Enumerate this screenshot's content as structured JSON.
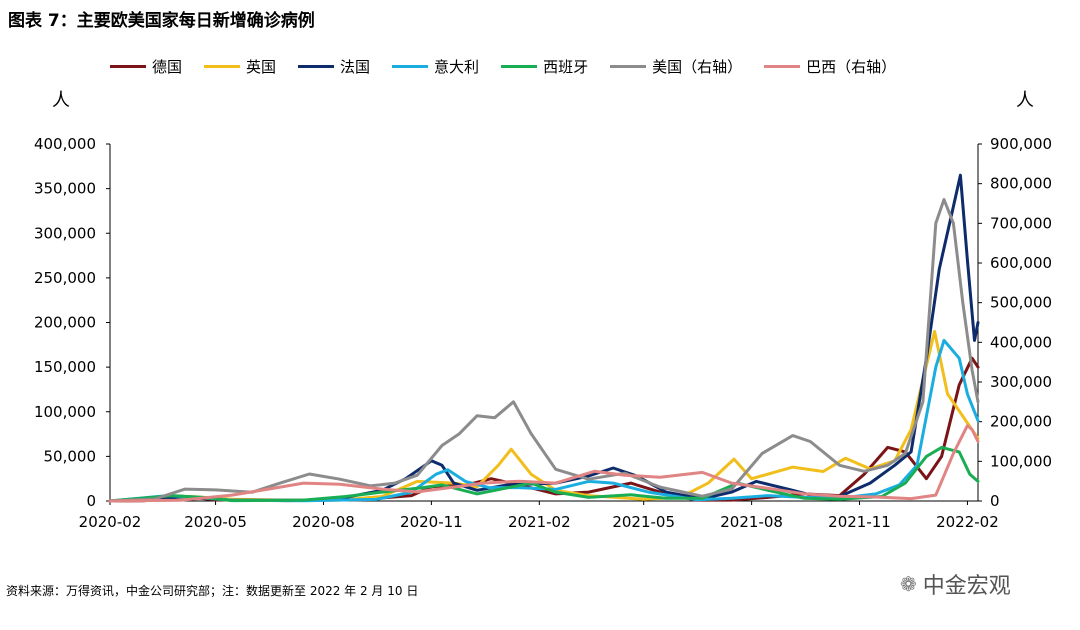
{
  "title": "图表 7：主要欧美国家每日新增确诊病例",
  "unit_left": "人",
  "unit_right": "人",
  "source": "资料来源：万得资讯，中金公司研究部；注：数据更新至 2022 年 2 月 10 日",
  "watermark": "中金宏观",
  "watermark_icon": "wechat-icon",
  "chart_data": {
    "type": "line",
    "x_ticks": [
      "2020-02",
      "2020-05",
      "2020-08",
      "2020-11",
      "2021-02",
      "2021-05",
      "2021-08",
      "2021-11",
      "2022-02"
    ],
    "xlim": [
      "2020-02-01",
      "2022-02-10"
    ],
    "y_left": {
      "lim": [
        0,
        400000
      ],
      "ticks": [
        "0",
        "50,000",
        "100,000",
        "150,000",
        "200,000",
        "250,000",
        "300,000",
        "350,000",
        "400,000"
      ]
    },
    "y_right": {
      "lim": [
        0,
        900000
      ],
      "ticks": [
        "0",
        "100,000",
        "200,000",
        "300,000",
        "400,000",
        "500,000",
        "600,000",
        "700,000",
        "800,000",
        "900,000"
      ]
    },
    "grid": false,
    "legend_position": "top",
    "series": [
      {
        "name": "德国",
        "axis": "left",
        "color": "#7B1416",
        "points": [
          [
            "2020-02-01",
            0
          ],
          [
            "2020-03-01",
            200
          ],
          [
            "2020-04-01",
            5500
          ],
          [
            "2020-05-01",
            1200
          ],
          [
            "2020-07-01",
            500
          ],
          [
            "2020-09-01",
            1500
          ],
          [
            "2020-10-15",
            6000
          ],
          [
            "2020-11-01",
            16000
          ],
          [
            "2020-12-01",
            18000
          ],
          [
            "2020-12-22",
            25000
          ],
          [
            "2021-01-15",
            18000
          ],
          [
            "2021-02-15",
            8000
          ],
          [
            "2021-03-15",
            10000
          ],
          [
            "2021-04-20",
            20000
          ],
          [
            "2021-05-15",
            10000
          ],
          [
            "2021-06-15",
            1000
          ],
          [
            "2021-07-15",
            1000
          ],
          [
            "2021-08-15",
            4000
          ],
          [
            "2021-09-15",
            8000
          ],
          [
            "2021-10-15",
            6000
          ],
          [
            "2021-11-05",
            30000
          ],
          [
            "2021-11-25",
            60000
          ],
          [
            "2021-12-10",
            55000
          ],
          [
            "2021-12-28",
            25000
          ],
          [
            "2022-01-10",
            50000
          ],
          [
            "2022-01-25",
            130000
          ],
          [
            "2022-02-05",
            160000
          ],
          [
            "2022-02-10",
            150000
          ]
        ]
      },
      {
        "name": "英国",
        "axis": "left",
        "color": "#F1BE1B",
        "points": [
          [
            "2020-02-01",
            0
          ],
          [
            "2020-04-10",
            5000
          ],
          [
            "2020-05-15",
            2000
          ],
          [
            "2020-07-01",
            800
          ],
          [
            "2020-08-15",
            1000
          ],
          [
            "2020-09-20",
            5000
          ],
          [
            "2020-10-20",
            22000
          ],
          [
            "2020-11-20",
            20000
          ],
          [
            "2020-12-10",
            16000
          ],
          [
            "2020-12-28",
            40000
          ],
          [
            "2021-01-08",
            58000
          ],
          [
            "2021-01-25",
            30000
          ],
          [
            "2021-02-15",
            12000
          ],
          [
            "2021-03-15",
            6000
          ],
          [
            "2021-05-01",
            2000
          ],
          [
            "2021-06-01",
            4000
          ],
          [
            "2021-06-25",
            20000
          ],
          [
            "2021-07-17",
            47000
          ],
          [
            "2021-08-01",
            25000
          ],
          [
            "2021-08-20",
            32000
          ],
          [
            "2021-09-05",
            38000
          ],
          [
            "2021-10-01",
            33000
          ],
          [
            "2021-10-20",
            48000
          ],
          [
            "2021-11-10",
            36000
          ],
          [
            "2021-12-01",
            45000
          ],
          [
            "2021-12-15",
            80000
          ],
          [
            "2021-12-24",
            130000
          ],
          [
            "2022-01-04",
            190000
          ],
          [
            "2022-01-15",
            120000
          ],
          [
            "2022-01-28",
            95000
          ],
          [
            "2022-02-10",
            70000
          ]
        ]
      },
      {
        "name": "法国",
        "axis": "left",
        "color": "#0E2C6C",
        "points": [
          [
            "2020-02-01",
            0
          ],
          [
            "2020-03-20",
            3000
          ],
          [
            "2020-04-05",
            5000
          ],
          [
            "2020-05-15",
            800
          ],
          [
            "2020-07-15",
            800
          ],
          [
            "2020-08-20",
            4000
          ],
          [
            "2020-09-20",
            12000
          ],
          [
            "2020-10-10",
            25000
          ],
          [
            "2020-11-01",
            45000
          ],
          [
            "2020-11-10",
            40000
          ],
          [
            "2020-11-20",
            20000
          ],
          [
            "2020-12-10",
            12000
          ],
          [
            "2021-01-05",
            18000
          ],
          [
            "2021-02-15",
            20000
          ],
          [
            "2021-03-15",
            28000
          ],
          [
            "2021-04-05",
            37000
          ],
          [
            "2021-04-25",
            28000
          ],
          [
            "2021-05-20",
            10000
          ],
          [
            "2021-06-20",
            2500
          ],
          [
            "2021-07-15",
            10000
          ],
          [
            "2021-08-05",
            22000
          ],
          [
            "2021-09-05",
            12000
          ],
          [
            "2021-09-25",
            5000
          ],
          [
            "2021-10-15",
            5000
          ],
          [
            "2021-11-10",
            20000
          ],
          [
            "2021-12-01",
            40000
          ],
          [
            "2021-12-15",
            55000
          ],
          [
            "2021-12-28",
            160000
          ],
          [
            "2022-01-08",
            260000
          ],
          [
            "2022-01-20",
            330000
          ],
          [
            "2022-01-26",
            365000
          ],
          [
            "2022-02-01",
            270000
          ],
          [
            "2022-02-07",
            180000
          ],
          [
            "2022-02-10",
            200000
          ]
        ]
      },
      {
        "name": "意大利",
        "axis": "left",
        "color": "#1AAEE0",
        "points": [
          [
            "2020-02-01",
            0
          ],
          [
            "2020-03-21",
            6000
          ],
          [
            "2020-04-15",
            4000
          ],
          [
            "2020-05-15",
            800
          ],
          [
            "2020-07-15",
            300
          ],
          [
            "2020-09-15",
            1800
          ],
          [
            "2020-10-15",
            10000
          ],
          [
            "2020-11-05",
            30000
          ],
          [
            "2020-11-15",
            35000
          ],
          [
            "2020-11-30",
            22000
          ],
          [
            "2020-12-20",
            15000
          ],
          [
            "2021-01-15",
            15000
          ],
          [
            "2021-02-15",
            13000
          ],
          [
            "2021-03-15",
            22000
          ],
          [
            "2021-04-05",
            20000
          ],
          [
            "2021-05-05",
            10000
          ],
          [
            "2021-06-15",
            1500
          ],
          [
            "2021-07-15",
            3000
          ],
          [
            "2021-08-15",
            6000
          ],
          [
            "2021-09-15",
            4000
          ],
          [
            "2021-10-15",
            3000
          ],
          [
            "2021-11-15",
            8000
          ],
          [
            "2021-12-05",
            18000
          ],
          [
            "2021-12-20",
            40000
          ],
          [
            "2022-01-05",
            150000
          ],
          [
            "2022-01-12",
            180000
          ],
          [
            "2022-01-25",
            160000
          ],
          [
            "2022-02-01",
            120000
          ],
          [
            "2022-02-10",
            90000
          ]
        ]
      },
      {
        "name": "西班牙",
        "axis": "left",
        "color": "#1AAE54",
        "points": [
          [
            "2020-02-01",
            0
          ],
          [
            "2020-03-25",
            6000
          ],
          [
            "2020-04-20",
            4000
          ],
          [
            "2020-05-15",
            500
          ],
          [
            "2020-07-15",
            1000
          ],
          [
            "2020-08-20",
            5000
          ],
          [
            "2020-09-20",
            10000
          ],
          [
            "2020-10-25",
            15000
          ],
          [
            "2020-11-10",
            18000
          ],
          [
            "2020-12-10",
            8000
          ],
          [
            "2021-01-25",
            20000
          ],
          [
            "2021-02-15",
            10000
          ],
          [
            "2021-03-15",
            4000
          ],
          [
            "2021-04-20",
            7000
          ],
          [
            "2021-05-20",
            3000
          ],
          [
            "2021-06-20",
            3000
          ],
          [
            "2021-07-20",
            20000
          ],
          [
            "2021-08-15",
            12000
          ],
          [
            "2021-09-15",
            3000
          ],
          [
            "2021-10-15",
            2000
          ],
          [
            "2021-11-20",
            5000
          ],
          [
            "2021-12-10",
            20000
          ],
          [
            "2021-12-28",
            50000
          ],
          [
            "2022-01-10",
            60000
          ],
          [
            "2022-01-25",
            55000
          ],
          [
            "2022-02-03",
            30000
          ],
          [
            "2022-02-10",
            22000
          ]
        ]
      },
      {
        "name": "美国（右轴）",
        "axis": "right",
        "color": "#8C8C8C",
        "points": [
          [
            "2020-02-01",
            0
          ],
          [
            "2020-03-10",
            5000
          ],
          [
            "2020-04-05",
            30000
          ],
          [
            "2020-05-01",
            28000
          ],
          [
            "2020-06-01",
            22000
          ],
          [
            "2020-06-25",
            45000
          ],
          [
            "2020-07-20",
            68000
          ],
          [
            "2020-08-15",
            55000
          ],
          [
            "2020-09-10",
            38000
          ],
          [
            "2020-10-01",
            45000
          ],
          [
            "2020-10-20",
            65000
          ],
          [
            "2020-11-10",
            140000
          ],
          [
            "2020-11-25",
            170000
          ],
          [
            "2020-12-10",
            215000
          ],
          [
            "2020-12-25",
            210000
          ],
          [
            "2021-01-10",
            250000
          ],
          [
            "2021-01-25",
            170000
          ],
          [
            "2021-02-15",
            80000
          ],
          [
            "2021-03-15",
            55000
          ],
          [
            "2021-04-15",
            70000
          ],
          [
            "2021-05-15",
            35000
          ],
          [
            "2021-06-20",
            12000
          ],
          [
            "2021-07-15",
            30000
          ],
          [
            "2021-08-10",
            120000
          ],
          [
            "2021-09-05",
            165000
          ],
          [
            "2021-09-20",
            150000
          ],
          [
            "2021-10-15",
            90000
          ],
          [
            "2021-11-05",
            75000
          ],
          [
            "2021-11-25",
            90000
          ],
          [
            "2021-12-10",
            120000
          ],
          [
            "2021-12-25",
            250000
          ],
          [
            "2022-01-05",
            700000
          ],
          [
            "2022-01-12",
            760000
          ],
          [
            "2022-01-20",
            700000
          ],
          [
            "2022-01-28",
            500000
          ],
          [
            "2022-02-05",
            330000
          ],
          [
            "2022-02-10",
            250000
          ]
        ]
      },
      {
        "name": "巴西（右轴）",
        "axis": "right",
        "color": "#E08484",
        "points": [
          [
            "2020-02-01",
            0
          ],
          [
            "2020-04-01",
            2000
          ],
          [
            "2020-05-15",
            15000
          ],
          [
            "2020-06-15",
            30000
          ],
          [
            "2020-07-15",
            45000
          ],
          [
            "2020-08-15",
            42000
          ],
          [
            "2020-09-20",
            30000
          ],
          [
            "2020-10-20",
            23000
          ],
          [
            "2020-11-20",
            35000
          ],
          [
            "2020-12-15",
            45000
          ],
          [
            "2021-01-15",
            50000
          ],
          [
            "2021-02-15",
            45000
          ],
          [
            "2021-03-20",
            75000
          ],
          [
            "2021-04-15",
            65000
          ],
          [
            "2021-05-15",
            60000
          ],
          [
            "2021-06-20",
            72000
          ],
          [
            "2021-07-15",
            45000
          ],
          [
            "2021-08-15",
            32000
          ],
          [
            "2021-09-15",
            18000
          ],
          [
            "2021-10-15",
            12000
          ],
          [
            "2021-11-15",
            10000
          ],
          [
            "2021-12-15",
            6000
          ],
          [
            "2022-01-05",
            15000
          ],
          [
            "2022-01-20",
            120000
          ],
          [
            "2022-02-01",
            190000
          ],
          [
            "2022-02-05",
            180000
          ],
          [
            "2022-02-10",
            150000
          ]
        ]
      }
    ]
  }
}
